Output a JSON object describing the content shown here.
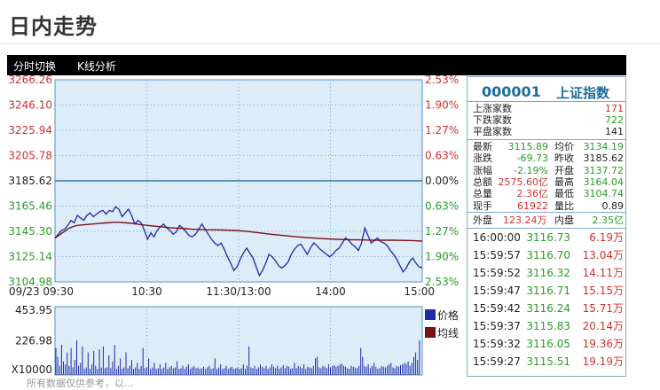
{
  "page": {
    "title": "日内走势",
    "toolbar": [
      "分时切换",
      "K线分析"
    ]
  },
  "colors": {
    "up": "#d03030",
    "down": "#2a9a2a",
    "price_line": "#1f2aa8",
    "avg_line": "#7a1010",
    "plot_bg": "#dcecf9",
    "prev_close_line": "#2e7d9e"
  },
  "chart_data": [
    {
      "type": "line",
      "y_ticks_left": [
        "3266.26",
        "3246.10",
        "3225.94",
        "3205.78",
        "3185.62",
        "3165.46",
        "3145.30",
        "3125.14",
        "3104.98"
      ],
      "y_ticks_right": [
        "2.53%",
        "1.90%",
        "1.27%",
        "0.63%",
        "0.00%",
        "0.63%",
        "1.27%",
        "1.90%",
        "2.53%"
      ],
      "x_ticks": [
        "09/23 09:30",
        "10:30",
        "11:30/13:00",
        "14:00",
        "15:00"
      ],
      "ylim": [
        3104.98,
        3266.26
      ],
      "prev_close": 3185.62,
      "series": [
        {
          "name": "价格",
          "values": [
            3140,
            3143,
            3146,
            3147,
            3150,
            3154,
            3152,
            3158,
            3156,
            3154,
            3158,
            3160,
            3157,
            3159,
            3161,
            3162,
            3159,
            3162,
            3161,
            3165,
            3163,
            3157,
            3160,
            3163,
            3158,
            3151,
            3154,
            3152,
            3146,
            3139,
            3144,
            3141,
            3146,
            3149,
            3151,
            3148,
            3146,
            3143,
            3145,
            3150,
            3148,
            3145,
            3142,
            3141,
            3143,
            3147,
            3151,
            3147,
            3143,
            3139,
            3136,
            3134,
            3136,
            3131,
            3125,
            3120,
            3114,
            3117,
            3123,
            3128,
            3132,
            3128,
            3124,
            3117,
            3110,
            3114,
            3120,
            3127,
            3125,
            3122,
            3118,
            3116,
            3118,
            3121,
            3127,
            3131,
            3134,
            3135,
            3131,
            3127,
            3132,
            3136,
            3134,
            3131,
            3129,
            3127,
            3125,
            3127,
            3130,
            3132,
            3136,
            3140,
            3138,
            3135,
            3133,
            3130,
            3136,
            3148,
            3142,
            3136,
            3138,
            3140,
            3137,
            3136,
            3134,
            3130,
            3127,
            3123,
            3118,
            3113,
            3116,
            3121,
            3124,
            3120,
            3117,
            3116
          ],
          "color": "#1f2aa8"
        },
        {
          "name": "均线",
          "values": [
            3140,
            3144,
            3148,
            3150,
            3150.5,
            3151,
            3151.5,
            3152,
            3152.5,
            3152.5,
            3152,
            3151.5,
            3150.5,
            3150,
            3149.3,
            3148.8,
            3148.2,
            3147.8,
            3147.4,
            3147,
            3146.8,
            3146.6,
            3146.5,
            3146.4,
            3146.2,
            3146,
            3145.6,
            3145.1,
            3144.4,
            3143.7,
            3143,
            3142.4,
            3141.8,
            3141.3,
            3140.8,
            3140.3,
            3139.9,
            3139.5,
            3139.2,
            3139,
            3138.8,
            3138.6,
            3138.5,
            3138.4,
            3138.3,
            3138.2,
            3138.2,
            3138.2,
            3138.1,
            3138,
            3137.8,
            3137.5
          ],
          "color": "#7a1010"
        }
      ]
    },
    {
      "type": "bar",
      "y_ticks": [
        "453.95",
        "226.98",
        "X10000"
      ],
      "ylim": [
        0,
        453.95
      ],
      "legend": [
        "价格",
        "均线"
      ],
      "values": [
        180,
        120,
        60,
        200,
        90,
        70,
        150,
        60,
        180,
        50,
        100,
        230,
        60,
        80,
        190,
        40,
        50,
        150,
        40,
        70,
        160,
        60,
        40,
        170,
        50,
        190,
        45,
        50,
        130,
        45,
        90,
        200,
        40,
        60,
        110,
        40,
        50,
        150,
        45,
        60,
        100,
        40,
        50,
        80,
        40,
        60,
        180,
        45,
        50,
        110,
        40,
        50,
        80,
        40,
        45,
        70,
        40,
        50,
        80,
        40,
        50,
        60,
        45,
        50,
        90,
        40,
        45,
        60,
        40,
        55,
        70,
        40,
        50,
        60,
        45,
        50,
        40,
        45,
        55,
        40,
        50,
        60,
        40,
        45,
        110,
        40,
        50,
        70,
        40,
        45,
        60,
        40,
        50,
        55,
        40,
        45,
        50,
        40,
        45,
        70,
        40,
        60,
        190,
        50,
        45,
        60,
        40,
        50,
        70,
        55,
        45,
        60,
        40,
        50,
        70,
        55,
        45,
        60,
        40,
        50,
        65,
        45,
        60,
        55,
        40,
        45,
        80,
        45,
        60,
        55,
        45,
        70,
        40,
        55,
        50,
        45,
        60,
        110,
        120,
        50,
        45,
        60,
        55,
        45,
        70,
        50,
        60,
        65,
        55,
        60,
        70,
        75,
        60,
        55,
        45,
        40,
        60,
        55,
        50,
        45,
        60,
        180,
        120,
        60,
        55,
        70,
        45,
        60,
        80,
        55,
        40,
        45,
        60,
        55,
        50,
        60,
        70,
        80,
        50,
        45,
        60,
        55,
        65,
        70,
        80,
        75,
        90,
        60,
        80,
        120,
        150,
        100,
        230
      ]
    }
  ],
  "info": {
    "code": "000001",
    "name": "上证指数",
    "breadth": [
      {
        "label": "上涨家数",
        "value": "171"
      },
      {
        "label": "下跌家数",
        "value": "722"
      },
      {
        "label": "平盘家数",
        "value": "141"
      }
    ],
    "quote": [
      {
        "l1": "最新",
        "v1": "3115.89",
        "l2": "均价",
        "v2": "3134.19"
      },
      {
        "l1": "涨跌",
        "v1": "-69.73",
        "l2": "昨收",
        "v2": "3185.62"
      },
      {
        "l1": "涨幅",
        "v1": "-2.19%",
        "l2": "开盘",
        "v2": "3137.72"
      },
      {
        "l1": "总额",
        "v1": "2575.60亿",
        "l2": "最高",
        "v2": "3164.04"
      },
      {
        "l1": "总量",
        "v1": "2.36亿",
        "l2": "最低",
        "v2": "3104.74"
      },
      {
        "l1": "现手",
        "v1": "61922",
        "l2": "量比",
        "v2": "0.89"
      }
    ],
    "outer_label": "外盘",
    "outer_value": "123.24万",
    "inner_label": "内盘",
    "inner_value": "2.35亿",
    "ticks": [
      {
        "time": "16:00:00",
        "price": "3116.73",
        "vol": "6.19万"
      },
      {
        "time": "15:59:57",
        "price": "3116.70",
        "vol": "13.04万"
      },
      {
        "time": "15:59:52",
        "price": "3116.32",
        "vol": "14.11万"
      },
      {
        "time": "15:59:47",
        "price": "3116.71",
        "vol": "15.15万"
      },
      {
        "time": "15:59:42",
        "price": "3116.24",
        "vol": "15.71万"
      },
      {
        "time": "15:59:37",
        "price": "3115.83",
        "vol": "20.14万"
      },
      {
        "time": "15:59:32",
        "price": "3116.05",
        "vol": "19.36万"
      },
      {
        "time": "15:59:27",
        "price": "3115.51",
        "vol": "19.19万"
      }
    ]
  },
  "footer_partial": "所有数据仅供参考，以..."
}
